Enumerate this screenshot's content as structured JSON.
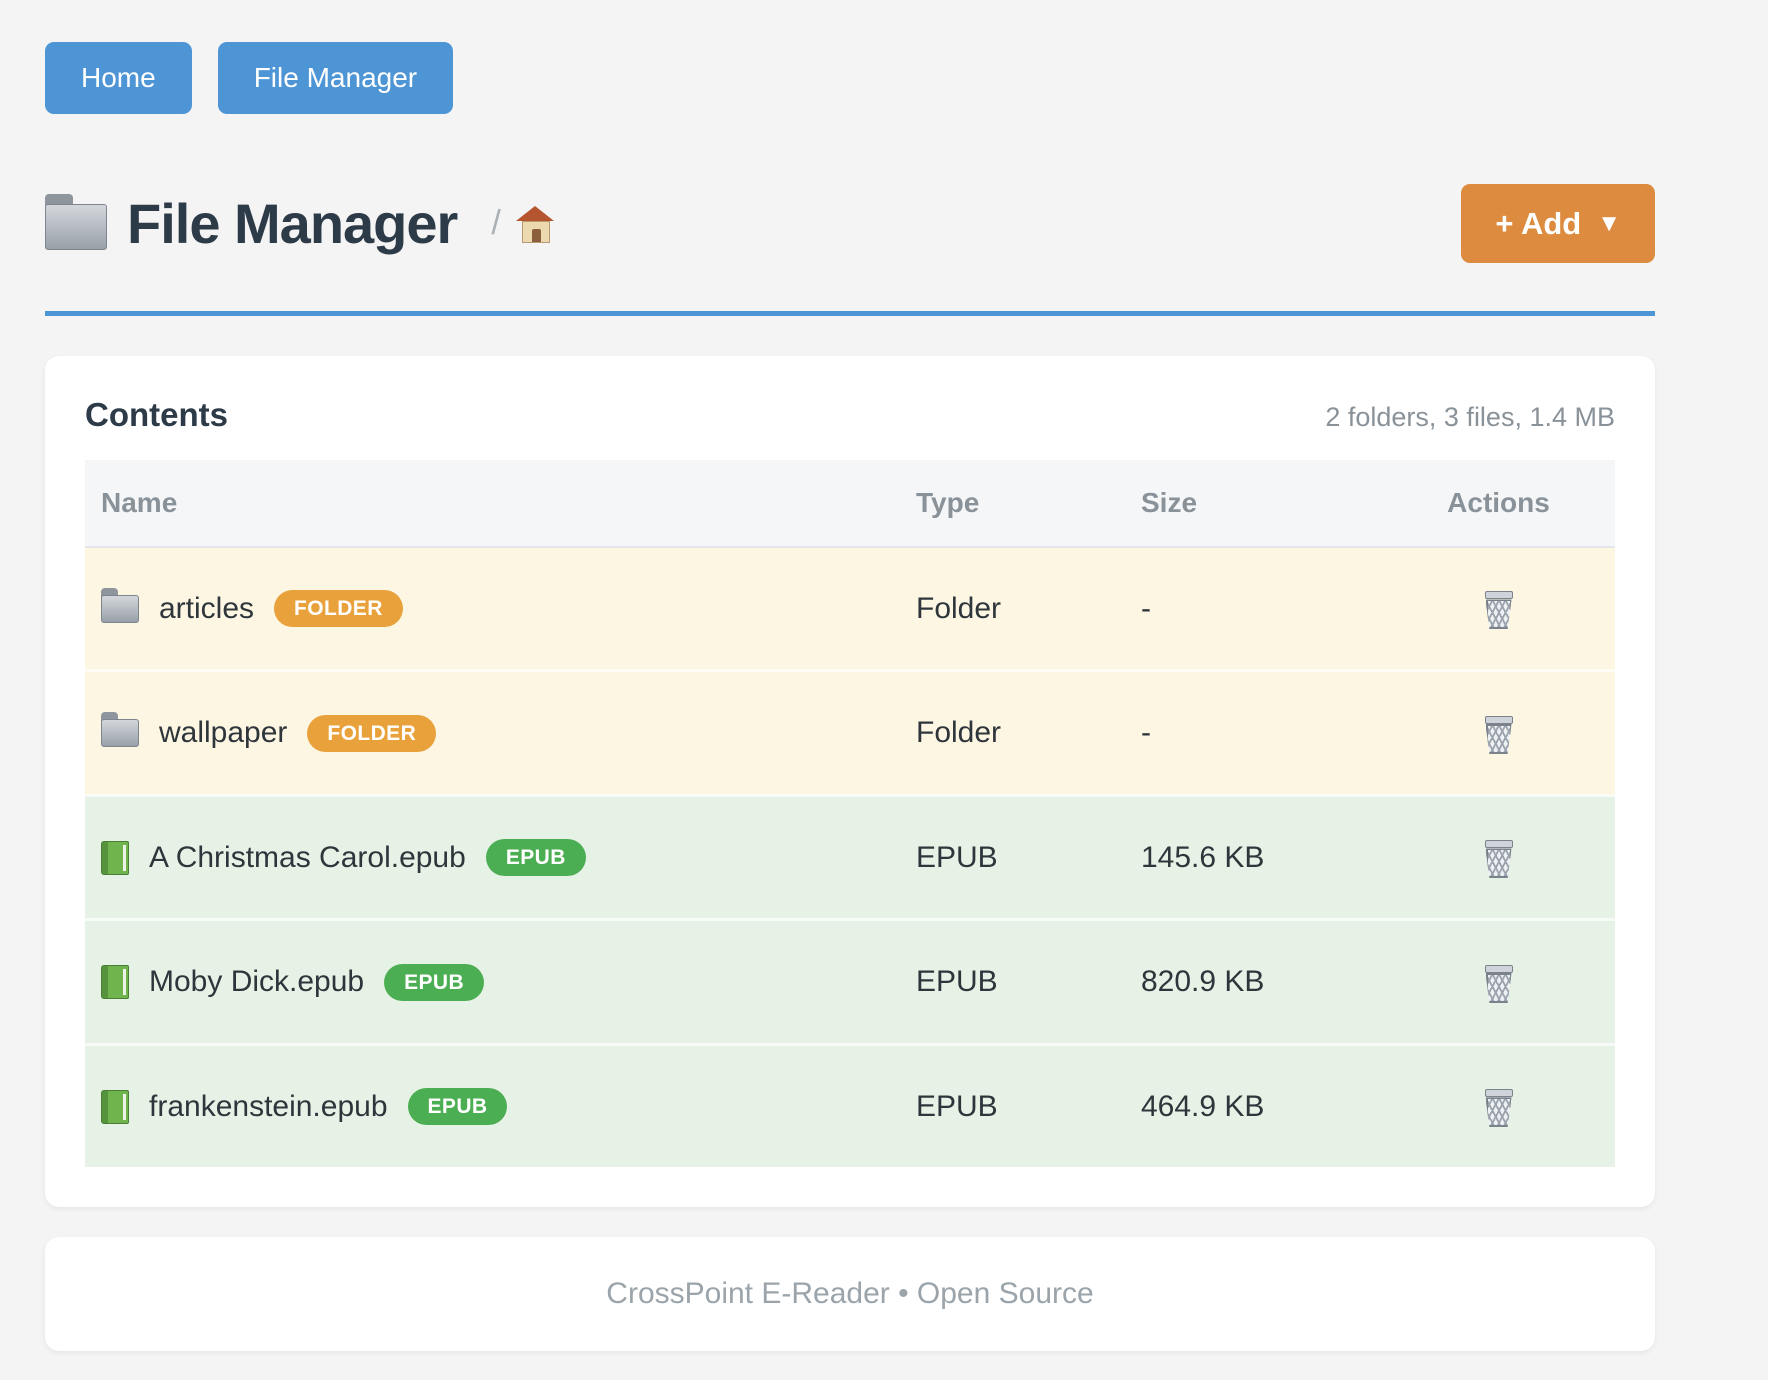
{
  "colors": {
    "page_bg": "#f4f4f5",
    "accent_blue": "#4e95d6",
    "accent_orange": "#dd8b3f",
    "badge_orange": "#e9a23b",
    "badge_green": "#4cae52",
    "folder_row_bg": "#fdf6e3",
    "epub_row_bg": "#e7f2e7",
    "heading_color": "#2d3b48",
    "muted_text": "#8a9299"
  },
  "nav": {
    "buttons": [
      {
        "label": "Home"
      },
      {
        "label": "File Manager"
      }
    ]
  },
  "header": {
    "title": "File Manager",
    "title_icon": "folder-icon",
    "breadcrumb_separator": "/",
    "breadcrumb_home_icon": "home-icon",
    "add_button": {
      "label": "+ Add",
      "caret": "▼"
    }
  },
  "card": {
    "heading": "Contents",
    "summary": "2 folders, 3 files, 1.4 MB",
    "table": {
      "columns": [
        "Name",
        "Type",
        "Size",
        "Actions"
      ],
      "rows": [
        {
          "name": "articles",
          "kind": "folder",
          "icon": "folder-icon",
          "badge": "FOLDER",
          "type": "Folder",
          "size": "-"
        },
        {
          "name": "wallpaper",
          "kind": "folder",
          "icon": "folder-icon",
          "badge": "FOLDER",
          "type": "Folder",
          "size": "-"
        },
        {
          "name": "A Christmas Carol.epub",
          "kind": "epub",
          "icon": "book-icon",
          "badge": "EPUB",
          "type": "EPUB",
          "size": "145.6 KB"
        },
        {
          "name": "Moby Dick.epub",
          "kind": "epub",
          "icon": "book-icon",
          "badge": "EPUB",
          "type": "EPUB",
          "size": "820.9 KB"
        },
        {
          "name": "frankenstein.epub",
          "kind": "epub",
          "icon": "book-icon",
          "badge": "EPUB",
          "type": "EPUB",
          "size": "464.9 KB"
        }
      ]
    }
  },
  "footer": {
    "text": "CrossPoint E-Reader • Open Source"
  }
}
